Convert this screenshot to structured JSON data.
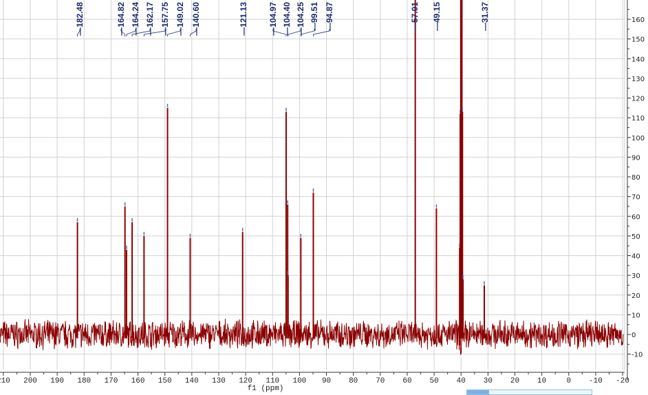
{
  "chart_data": {
    "type": "line",
    "title": "",
    "xlabel": "f1 (ppm)",
    "ylabel": "",
    "xlim": [
      210,
      -20
    ],
    "ylim": [
      -17,
      170
    ],
    "x_reversed": true,
    "grid": true,
    "x_ticks": [
      210,
      200,
      190,
      180,
      170,
      160,
      150,
      140,
      130,
      120,
      110,
      100,
      90,
      80,
      70,
      60,
      50,
      40,
      30,
      20,
      10,
      0,
      -10,
      -20
    ],
    "y_ticks": [
      -10,
      0,
      10,
      20,
      30,
      40,
      50,
      60,
      70,
      80,
      90,
      100,
      110,
      120,
      130,
      140,
      150,
      160
    ],
    "y_axis_position": "right",
    "line_color": "#8b0000",
    "label_color": "#1a2a6e",
    "peak_labels": [
      "182.48",
      "164.82",
      "164.24",
      "162.17",
      "157.75",
      "149.02",
      "140.60",
      "121.13",
      "104.97",
      "104.40",
      "104.25",
      "99.51",
      "94.87",
      "57.01",
      "49.15",
      "31.37"
    ],
    "peaks": [
      {
        "ppm": 182.48,
        "height": 57
      },
      {
        "ppm": 164.82,
        "height": 65
      },
      {
        "ppm": 164.24,
        "height": 43
      },
      {
        "ppm": 162.17,
        "height": 57
      },
      {
        "ppm": 157.75,
        "height": 50
      },
      {
        "ppm": 149.02,
        "height": 115
      },
      {
        "ppm": 140.6,
        "height": 49
      },
      {
        "ppm": 121.13,
        "height": 52
      },
      {
        "ppm": 104.97,
        "height": 113
      },
      {
        "ppm": 104.4,
        "height": 66
      },
      {
        "ppm": 104.25,
        "height": 30
      },
      {
        "ppm": 99.51,
        "height": 49
      },
      {
        "ppm": 94.87,
        "height": 72
      },
      {
        "ppm": 57.01,
        "height": 200
      },
      {
        "ppm": 49.15,
        "height": 64
      },
      {
        "ppm": 31.37,
        "height": 25
      },
      {
        "ppm": 40.52,
        "height": 44
      },
      {
        "ppm": 40.31,
        "height": 112
      },
      {
        "ppm": 40.1,
        "height": 300
      },
      {
        "ppm": 39.89,
        "height": 300
      },
      {
        "ppm": 39.68,
        "height": 300
      },
      {
        "ppm": 39.47,
        "height": 113
      },
      {
        "ppm": 39.26,
        "height": 28
      }
    ],
    "noise_amplitude": 6
  }
}
